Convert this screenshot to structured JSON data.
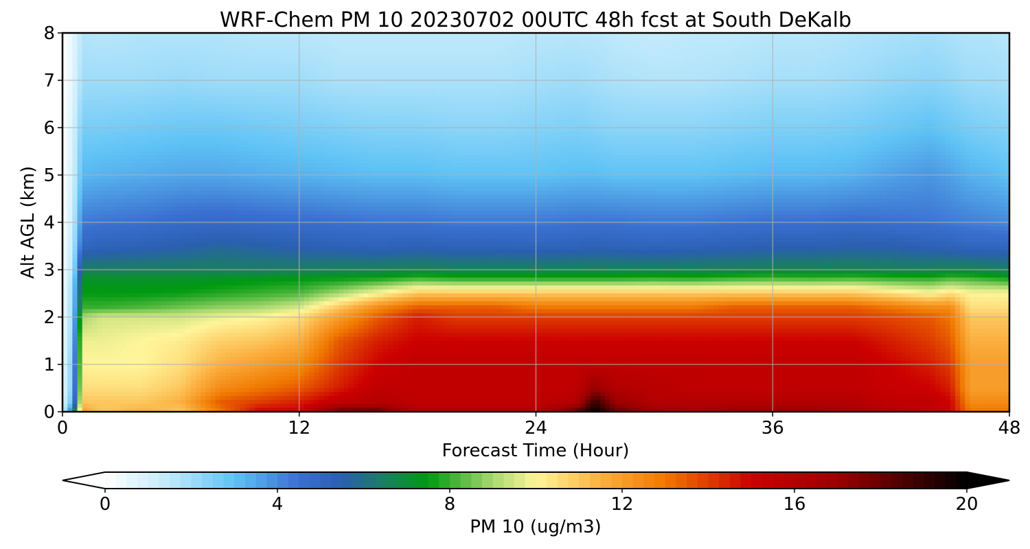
{
  "chart_data": {
    "type": "heatmap",
    "title": "WRF-Chem PM 10  20230702 00UTC 48h fcst at South DeKalb",
    "xlabel": "Forecast Time (Hour)",
    "ylabel": "Alt AGL (km)",
    "xlim": [
      0,
      48
    ],
    "ylim": [
      0,
      8
    ],
    "xticks": [
      0,
      12,
      24,
      36,
      48
    ],
    "yticks": [
      0,
      1,
      2,
      3,
      4,
      5,
      6,
      7,
      8
    ],
    "grid": true,
    "colorbar": {
      "label": "PM 10  (ug/m3)",
      "range": [
        0,
        20
      ],
      "ticks": [
        0,
        4,
        8,
        12,
        16,
        20
      ],
      "extend": "both",
      "stops": [
        {
          "v": 0,
          "c": "#ffffff"
        },
        {
          "v": 1.5,
          "c": "#bfe9fb"
        },
        {
          "v": 3,
          "c": "#5fc3f5"
        },
        {
          "v": 4.5,
          "c": "#3a6fd0"
        },
        {
          "v": 5.5,
          "c": "#2a5fb0"
        },
        {
          "v": 6.5,
          "c": "#1a7f5f"
        },
        {
          "v": 7.5,
          "c": "#009a10"
        },
        {
          "v": 9,
          "c": "#a8d870"
        },
        {
          "v": 10,
          "c": "#fff59a"
        },
        {
          "v": 11.5,
          "c": "#fbb040"
        },
        {
          "v": 13,
          "c": "#f07800"
        },
        {
          "v": 15,
          "c": "#cc0000"
        },
        {
          "v": 17,
          "c": "#9a0000"
        },
        {
          "v": 20,
          "c": "#000000"
        }
      ]
    },
    "times": [
      0,
      0.5,
      1,
      2,
      4,
      6,
      8,
      10,
      12,
      14,
      16,
      18,
      20,
      22,
      24,
      26,
      27,
      28,
      30,
      32,
      34,
      36,
      38,
      40,
      42,
      44,
      45,
      46,
      47,
      48
    ],
    "levels": [
      0,
      0.2,
      0.5,
      1,
      1.5,
      2,
      2.2,
      2.5,
      2.8,
      3,
      3.5,
      4,
      5,
      6,
      7,
      8
    ],
    "values": [
      [
        1,
        5,
        12,
        11,
        11.5,
        11,
        13,
        15,
        15,
        18,
        18,
        16,
        16,
        16,
        16,
        18,
        20,
        18,
        17,
        16.5,
        17,
        17,
        17,
        16.5,
        16,
        15.5,
        15,
        13,
        13,
        13
      ],
      [
        0.8,
        3,
        11,
        11,
        11,
        11.5,
        13.5,
        14,
        14.5,
        15.5,
        16,
        15.5,
        15.5,
        15.5,
        15.5,
        16,
        19,
        17,
        16,
        16,
        16,
        16,
        16,
        16,
        15.5,
        15.5,
        15,
        12.5,
        12.5,
        12.5
      ],
      [
        0.6,
        2.5,
        10.5,
        10.5,
        10.5,
        11,
        12.5,
        13,
        13.5,
        14.5,
        15.5,
        15.5,
        15.5,
        15.5,
        15.5,
        15.5,
        17,
        16,
        15.8,
        15.5,
        15.5,
        15.5,
        15.5,
        15.5,
        15.2,
        15,
        14.5,
        12,
        12,
        12
      ],
      [
        0.5,
        2.5,
        10,
        10,
        10,
        10.5,
        11.5,
        12,
        12.5,
        14,
        15,
        15.5,
        15.5,
        15.5,
        15.5,
        15.5,
        15.5,
        15.5,
        15.5,
        15.5,
        15.5,
        15.5,
        15.5,
        15.5,
        15,
        14.5,
        14,
        12,
        12,
        12
      ],
      [
        0.4,
        2.2,
        9.8,
        9.8,
        10,
        10.2,
        10.8,
        11,
        11.5,
        13.5,
        14.5,
        15,
        15,
        15,
        15,
        15,
        15,
        15,
        15,
        15,
        15,
        15,
        15,
        15,
        14.5,
        14,
        13.5,
        11.5,
        11.5,
        11.5
      ],
      [
        0.3,
        2,
        9,
        9.5,
        9.5,
        9.5,
        9.8,
        10,
        10.5,
        12,
        13.5,
        14.5,
        14,
        14,
        14,
        14,
        14,
        14,
        14,
        14,
        14,
        14,
        14,
        14,
        13.8,
        13.5,
        13,
        11,
        11,
        11
      ],
      [
        0.3,
        2,
        8,
        8,
        8.2,
        8.5,
        8.8,
        9,
        9.5,
        11,
        12.5,
        13.5,
        13.5,
        13.5,
        13,
        13,
        13,
        13,
        13,
        13,
        13.5,
        13.5,
        13.5,
        13.5,
        13,
        12.5,
        12.5,
        10.5,
        10.5,
        10.5
      ],
      [
        0.25,
        2,
        7.5,
        7.5,
        7.5,
        7.6,
        7.8,
        8,
        8.2,
        9,
        10,
        11,
        11,
        11,
        11,
        11,
        11,
        11,
        11,
        11,
        11,
        11,
        11,
        11,
        10.5,
        10,
        10.5,
        10,
        10,
        10
      ],
      [
        0.2,
        1.8,
        7.2,
        7.2,
        7.2,
        7.2,
        7.3,
        7.4,
        7.5,
        7.6,
        7.8,
        8.2,
        8,
        8,
        8,
        8,
        8,
        8,
        8.1,
        8,
        8.2,
        8.3,
        8.2,
        8.3,
        8.1,
        8,
        8.3,
        8.2,
        8,
        7.8
      ],
      [
        0.2,
        1.5,
        6.5,
        6.5,
        6.5,
        6.5,
        6.5,
        6.4,
        6.5,
        6.6,
        6.6,
        6.7,
        6.6,
        6.6,
        6.6,
        6.6,
        6.6,
        6.6,
        6.6,
        6.6,
        6.6,
        6.7,
        6.7,
        6.7,
        6.6,
        6.6,
        6.7,
        6.7,
        6.6,
        6.5
      ],
      [
        0.15,
        1.3,
        5,
        5.2,
        5.3,
        5.5,
        5.7,
        5.6,
        5.4,
        5.3,
        5.2,
        5.3,
        5.2,
        5.2,
        5.1,
        5.2,
        5.3,
        5.2,
        5.1,
        5.2,
        5.3,
        5.4,
        5.4,
        5.5,
        5.5,
        5.3,
        5.2,
        5,
        5,
        5
      ],
      [
        0.1,
        1.1,
        4.3,
        4.4,
        4.5,
        4.7,
        4.8,
        4.7,
        4.6,
        4.5,
        4.4,
        4.4,
        4.3,
        4.3,
        4.3,
        4.4,
        4.4,
        4.4,
        4.3,
        4.3,
        4.4,
        4.5,
        4.5,
        4.6,
        4.5,
        4.4,
        4.3,
        4.2,
        4.1,
        4
      ],
      [
        0.05,
        0.9,
        3.2,
        3.3,
        3.4,
        3.5,
        3.5,
        3.4,
        3.3,
        3.2,
        3.1,
        3.1,
        3,
        3,
        3,
        3.1,
        3.1,
        3,
        3,
        3,
        3.1,
        3.2,
        3.2,
        3.3,
        3.6,
        3.8,
        3.6,
        3.3,
        3.2,
        3
      ],
      [
        0.05,
        0.8,
        2.6,
        2.6,
        2.7,
        2.8,
        2.8,
        2.7,
        2.6,
        2.5,
        2.4,
        2.4,
        2.3,
        2.3,
        2.4,
        2.5,
        2.4,
        2.3,
        2.3,
        2.3,
        2.4,
        2.5,
        2.5,
        2.6,
        2.8,
        3,
        2.8,
        2.6,
        2.5,
        2.4
      ],
      [
        0,
        0.6,
        2,
        2,
        2,
        2.1,
        2,
        2,
        2,
        1.8,
        1.8,
        1.8,
        1.8,
        1.8,
        1.9,
        2,
        1.9,
        1.8,
        1.7,
        1.7,
        1.8,
        1.9,
        1.9,
        2,
        2.2,
        2.3,
        2.2,
        2,
        2,
        1.9
      ],
      [
        0,
        0.5,
        1.7,
        1.6,
        1.7,
        1.7,
        1.7,
        1.6,
        1.6,
        1.5,
        1.5,
        1.5,
        1.5,
        1.5,
        1.6,
        1.6,
        1.6,
        1.5,
        1.4,
        1.5,
        1.5,
        1.6,
        1.6,
        1.7,
        1.8,
        1.9,
        1.8,
        1.7,
        1.7,
        1.6
      ]
    ]
  }
}
